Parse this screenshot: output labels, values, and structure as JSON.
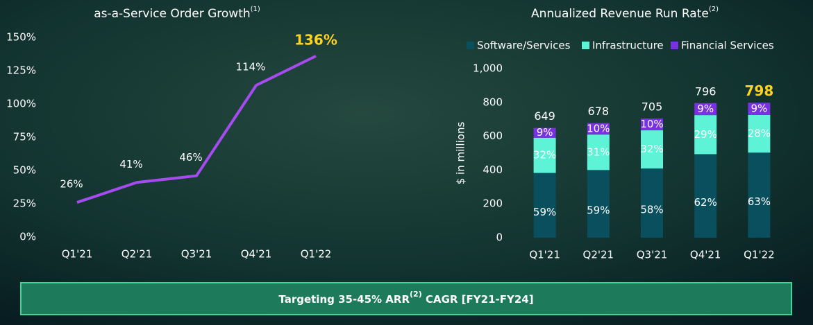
{
  "chart_data": [
    {
      "type": "line",
      "title": "as-a-Service Order Growth",
      "title_superscript": "(1)",
      "categories": [
        "Q1'21",
        "Q2'21",
        "Q3'21",
        "Q4'21",
        "Q1'22"
      ],
      "values": [
        26,
        41,
        46,
        114,
        136
      ],
      "value_labels": [
        "26%",
        "41%",
        "46%",
        "114%",
        "136%"
      ],
      "value_label_colors": [
        "#ffffff",
        "#ffffff",
        "#ffffff",
        "#ffffff",
        "#ffd21f"
      ],
      "color": "#a54bf0",
      "ylim": [
        0,
        150
      ],
      "yticks": [
        {
          "value": 0,
          "label": "0%"
        },
        {
          "value": 25,
          "label": "25%"
        },
        {
          "value": 50,
          "label": "50%"
        },
        {
          "value": 75,
          "label": "75%"
        },
        {
          "value": 100,
          "label": "100%"
        },
        {
          "value": 125,
          "label": "125%"
        },
        {
          "value": 150,
          "label": "150%"
        }
      ]
    },
    {
      "type": "stacked_bar",
      "title": "Annualized Revenue Run Rate",
      "title_superscript": "(2)",
      "y_label": "$ in millions",
      "categories": [
        "Q1'21",
        "Q2'21",
        "Q3'21",
        "Q4'21",
        "Q1'22"
      ],
      "series": [
        {
          "name": "Software/Services",
          "color": "#0a4f5d",
          "values": [
            383,
            400,
            409,
            494,
            503
          ],
          "value_labels": [
            "59%",
            "59%",
            "58%",
            "62%",
            "63%"
          ]
        },
        {
          "name": "Infrastructure",
          "color": "#5ef2d6",
          "values": [
            208,
            210,
            226,
            231,
            223
          ],
          "value_labels": [
            "32%",
            "31%",
            "32%",
            "29%",
            "28%"
          ]
        },
        {
          "name": "Financial Services",
          "color": "#7a32e0",
          "values": [
            58,
            68,
            70,
            71,
            72
          ],
          "value_labels": [
            "9%",
            "10%",
            "10%",
            "9%",
            "9%"
          ]
        }
      ],
      "totals": [
        649,
        678,
        705,
        796,
        798
      ],
      "total_colors": [
        "#ffffff",
        "#ffffff",
        "#ffffff",
        "#ffffff",
        "#ffd21f"
      ],
      "legend": "top",
      "ylim": [
        0,
        1000
      ],
      "yticks": [
        0,
        200,
        400,
        600,
        800,
        {
          "value": 1000,
          "label": "1,000"
        }
      ]
    }
  ],
  "banner": {
    "text_before": "Targeting 35-45% ARR",
    "superscript": "(2)",
    "text_after": " CAGR [FY21-FY24]"
  }
}
